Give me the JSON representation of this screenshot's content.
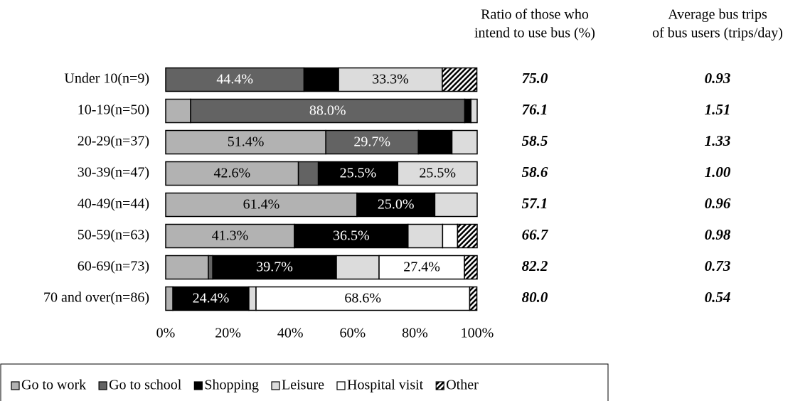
{
  "chart_data": {
    "type": "stacked_barh",
    "categories": [
      "Under 10(n=9)",
      "10-19(n=50)",
      "20-29(n=37)",
      "30-39(n=47)",
      "40-49(n=44)",
      "50-59(n=63)",
      "60-69(n=73)",
      "70 and over(n=86)"
    ],
    "series": [
      {
        "name": "Go to work",
        "color": "#b2b2b2",
        "values": [
          0,
          8.0,
          51.4,
          42.6,
          61.4,
          41.3,
          13.7,
          2.3
        ],
        "value_labels": [
          null,
          null,
          "51.4%",
          "42.6%",
          "61.4%",
          "41.3%",
          null,
          null
        ]
      },
      {
        "name": "Go to school",
        "color": "#636363",
        "values": [
          44.4,
          88.0,
          29.7,
          6.4,
          0,
          0,
          1.4,
          0
        ],
        "value_labels": [
          "44.4%",
          "88.0%",
          "29.7%",
          null,
          null,
          null,
          null,
          null
        ]
      },
      {
        "name": "Shopping",
        "color": "#000000",
        "values": [
          11.1,
          2.0,
          10.8,
          25.5,
          25.0,
          36.5,
          39.7,
          24.4
        ],
        "value_labels": [
          null,
          null,
          null,
          "25.5%",
          "25.0%",
          "36.5%",
          "39.7%",
          "24.4%"
        ]
      },
      {
        "name": "Leisure",
        "color": "#dcdcdc",
        "values": [
          33.3,
          2.0,
          8.1,
          25.5,
          13.6,
          11.1,
          13.7,
          2.3
        ],
        "value_labels": [
          "33.3%",
          null,
          null,
          "25.5%",
          null,
          null,
          null,
          null
        ]
      },
      {
        "name": "Hospital visit",
        "color": "#ffffff",
        "values": [
          0,
          0,
          0,
          0,
          0,
          4.8,
          27.4,
          68.6
        ],
        "value_labels": [
          null,
          null,
          null,
          null,
          null,
          null,
          "27.4%",
          "68.6%"
        ]
      },
      {
        "name": "Other",
        "color": "#000000",
        "pattern": "hatch",
        "values": [
          11.1,
          0,
          0,
          0,
          0,
          6.3,
          4.1,
          2.3
        ]
      }
    ],
    "xlim": [
      0,
      100
    ],
    "xticks": [
      {
        "value": 0,
        "label": "0%"
      },
      {
        "value": 20,
        "label": "20%"
      },
      {
        "value": 40,
        "label": "40%"
      },
      {
        "value": 60,
        "label": "60%"
      },
      {
        "value": 80,
        "label": "80%"
      },
      {
        "value": 100,
        "label": "100%"
      }
    ],
    "legend": "bottom",
    "columns": [
      {
        "title": [
          "Ratio of those who",
          "intend to use bus (%)"
        ],
        "values": [
          75.0,
          76.1,
          58.5,
          58.6,
          57.1,
          66.7,
          82.2,
          80.0
        ],
        "value_labels": [
          "75.0",
          "76.1",
          "58.5",
          "58.6",
          "57.1",
          "66.7",
          "82.2",
          "80.0"
        ]
      },
      {
        "title": [
          "Average bus trips",
          "of bus users (trips/day)"
        ],
        "values": [
          0.93,
          1.51,
          1.33,
          1.0,
          0.96,
          0.98,
          0.73,
          0.54
        ],
        "value_labels": [
          "0.93",
          "1.51",
          "1.33",
          "1.00",
          "0.96",
          "0.98",
          "0.73",
          "0.54"
        ]
      }
    ]
  }
}
